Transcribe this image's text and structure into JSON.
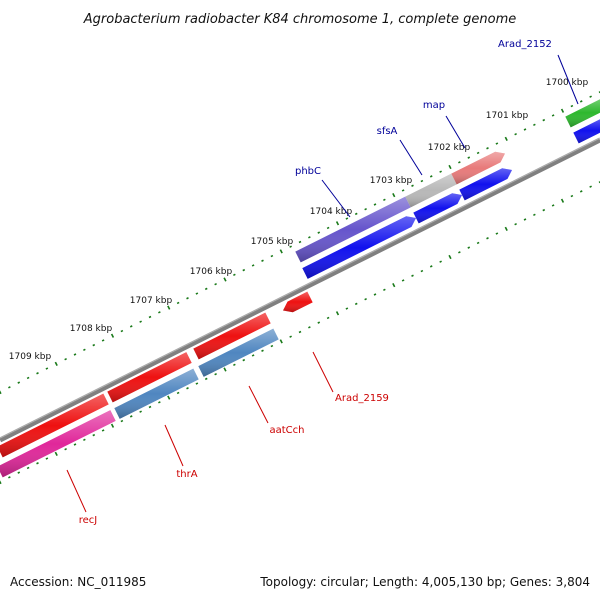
{
  "title": "Agrobacterium radiobacter K84 chromosome 1, complete genome",
  "footer": {
    "accession": "Accession: NC_011985",
    "summary": "Topology: circular; Length: 4,005,130 bp; Genes: 3,804"
  },
  "ruler": {
    "unit": "kbp",
    "ticks": [
      "1700 kbp",
      "1701 kbp",
      "1702 kbp",
      "1703 kbp",
      "1704 kbp",
      "1705 kbp",
      "1706 kbp",
      "1707 kbp",
      "1708 kbp",
      "1709 kbp"
    ]
  },
  "genes": [
    {
      "name": "Arad_2152",
      "strand": "plus",
      "color": "#2eb82e"
    },
    {
      "name": "map",
      "strand": "plus",
      "color": "#e87a7a"
    },
    {
      "name": "sfsA",
      "strand": "plus",
      "color": "#b8b8b8"
    },
    {
      "name": "phbC",
      "strand": "plus",
      "color": "#6655cc"
    },
    {
      "name": "Arad_2159",
      "strand": "minus",
      "color": "#ee1111"
    },
    {
      "name": "aatCch",
      "strand": "minus",
      "color": "#4f86c0"
    },
    {
      "name": "thrA",
      "strand": "minus",
      "color": "#ee1111"
    },
    {
      "name": "recJ",
      "strand": "minus",
      "color": "#e0279a"
    }
  ],
  "colors": {
    "backbone": "#808080",
    "ruler_ticks": "#1a7a1a",
    "cds": "#1111ee",
    "plus_label": "#000099",
    "minus_label": "#cc0000"
  }
}
